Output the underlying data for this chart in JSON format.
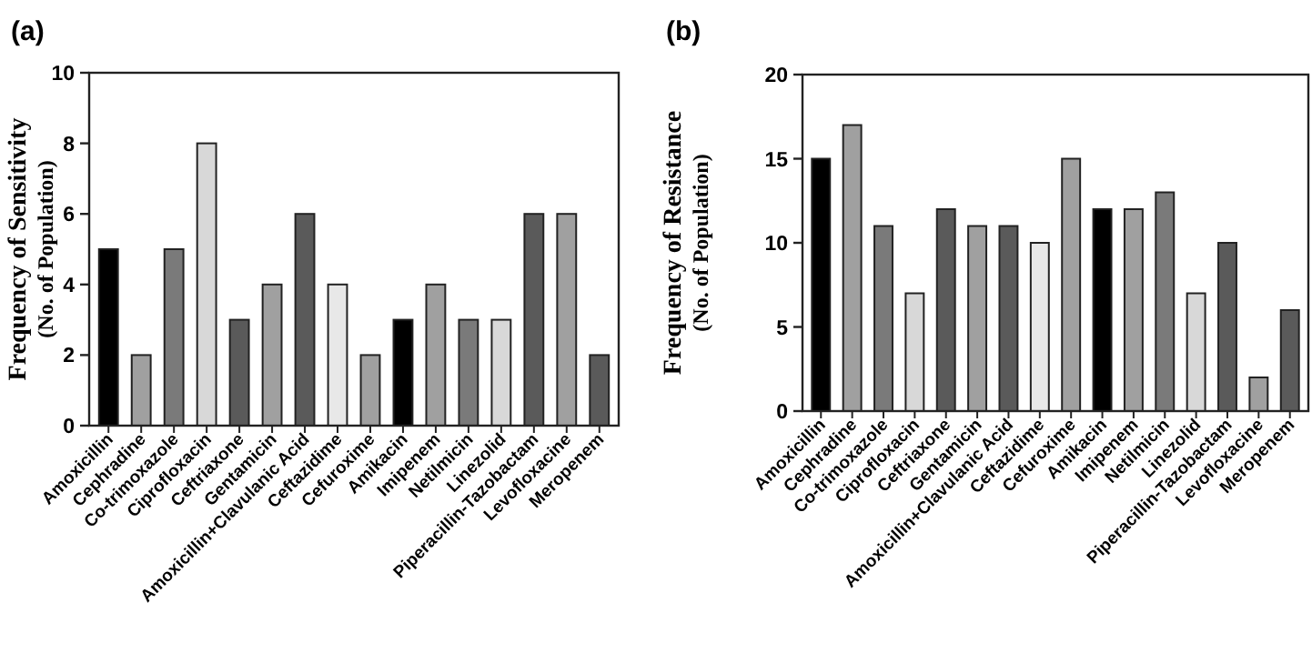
{
  "chart_data": [
    {
      "type": "bar",
      "title": "(a)",
      "ylabel": "Frequency of Sensitivity\n(No. of Population)",
      "categories": [
        "Amoxicillin",
        "Cephradine",
        "Co-trimoxazole",
        "Ciprofloxacin",
        "Ceftriaxone",
        "Gentamicin",
        "Amoxicillin+Clavulanic Acid",
        "Ceftazidime",
        "Cefuroxime",
        "Amikacin",
        "Imipenem",
        "Netilmicin",
        "Linezolid",
        "Piperacillin-Tazobactam",
        "Levofloxacine",
        "Meropenem"
      ],
      "values": [
        5,
        2,
        5,
        8,
        3,
        4,
        6,
        4,
        2,
        3,
        4,
        3,
        3,
        6,
        6,
        2
      ],
      "colors": [
        "#000000",
        "#a0a0a0",
        "#7a7a7a",
        "#d8d8d8",
        "#5a5a5a",
        "#a0a0a0",
        "#5a5a5a",
        "#e8e8e8",
        "#a0a0a0",
        "#000000",
        "#a0a0a0",
        "#7a7a7a",
        "#d8d8d8",
        "#5a5a5a",
        "#a0a0a0",
        "#5a5a5a"
      ],
      "ylim": [
        0,
        10
      ],
      "yticks": [
        0,
        2,
        4,
        6,
        8,
        10
      ]
    },
    {
      "type": "bar",
      "title": "(b)",
      "ylabel": "Frequency of Resistance\n(No. of Population)",
      "categories": [
        "Amoxicillin",
        "Cephradine",
        "Co-trimoxazole",
        "Ciprofloxacin",
        "Ceftriaxone",
        "Gentamicin",
        "Amoxicillin+Clavulanic Acid",
        "Ceftazidime",
        "Cefuroxime",
        "Amikacin",
        "Imipenem",
        "Netilmicin",
        "Linezolid",
        "Piperacillin-Tazobactam",
        "Levofloxacine",
        "Meropenem"
      ],
      "values": [
        15,
        17,
        11,
        7,
        12,
        11,
        11,
        10,
        15,
        12,
        12,
        13,
        7,
        10,
        2,
        6
      ],
      "colors": [
        "#000000",
        "#a0a0a0",
        "#7a7a7a",
        "#d8d8d8",
        "#5a5a5a",
        "#a0a0a0",
        "#5a5a5a",
        "#e8e8e8",
        "#a0a0a0",
        "#000000",
        "#a0a0a0",
        "#7a7a7a",
        "#d8d8d8",
        "#5a5a5a",
        "#a0a0a0",
        "#5a5a5a"
      ],
      "ylim": [
        0,
        20
      ],
      "yticks": [
        0,
        5,
        10,
        15,
        20
      ]
    }
  ]
}
